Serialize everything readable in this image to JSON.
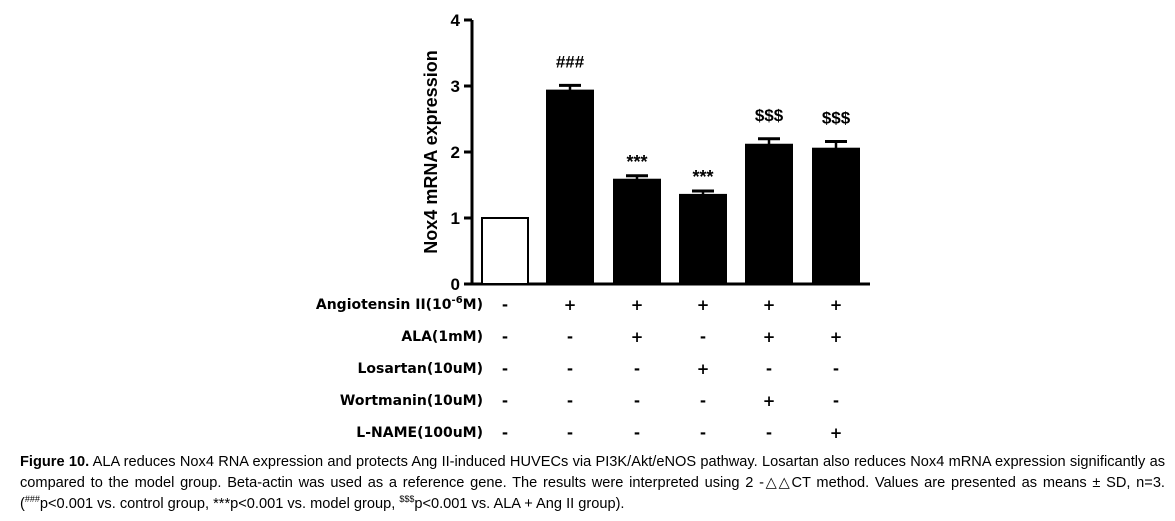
{
  "chart_data": {
    "type": "bar",
    "ylabel": "Nox4 mRNA expression",
    "ylim": [
      0,
      4
    ],
    "yticks": [
      "0",
      "1",
      "2",
      "3",
      "4"
    ],
    "bars": [
      {
        "value": 1.0,
        "error": 0.0,
        "fill": "#ffffff",
        "significance": ""
      },
      {
        "value": 2.93,
        "error": 0.08,
        "fill": "#000000",
        "significance": "###"
      },
      {
        "value": 1.58,
        "error": 0.06,
        "fill": "#000000",
        "significance": "***"
      },
      {
        "value": 1.35,
        "error": 0.06,
        "fill": "#000000",
        "significance": "***"
      },
      {
        "value": 2.11,
        "error": 0.09,
        "fill": "#000000",
        "significance": "$$$"
      },
      {
        "value": 2.05,
        "error": 0.11,
        "fill": "#000000",
        "significance": "$$$"
      }
    ],
    "treatments": [
      {
        "label": "Angiotensin II(10",
        "label_sup": "-6",
        "label_end": "M)",
        "marks": [
          "-",
          "+",
          "+",
          "+",
          "+",
          "+"
        ]
      },
      {
        "label": "ALA(1mM)",
        "label_sup": "",
        "label_end": "",
        "marks": [
          "-",
          "-",
          "+",
          "-",
          "+",
          "+"
        ]
      },
      {
        "label": "Losartan(10uM)",
        "label_sup": "",
        "label_end": "",
        "marks": [
          "-",
          "-",
          "-",
          "+",
          "-",
          "-"
        ]
      },
      {
        "label": "Wortmanin(10uM)",
        "label_sup": "",
        "label_end": "",
        "marks": [
          "-",
          "-",
          "-",
          "-",
          "+",
          "-"
        ]
      },
      {
        "label": "L-NAME(100uM)",
        "label_sup": "",
        "label_end": "",
        "marks": [
          "-",
          "-",
          "-",
          "-",
          "-",
          "+"
        ]
      }
    ]
  },
  "caption": {
    "figure_label": "Figure 10.",
    "text_1": " ALA reduces Nox4 RNA expression and protects Ang II-induced HUVECs via PI3K/Akt/eNOS pathway. Losartan also reduces Nox4 mRNA expression significantly as compared to the model group. Beta-actin was used as a reference gene. The results were interpreted using 2 -△△CT method. Values are presented as means ± SD, n=3. (",
    "sup_1": "###",
    "text_2": "p<0.001 vs. control group, ***p<0.001 vs. model group, ",
    "sup_2": "$$$",
    "text_3": "p<0.001 vs. ALA + Ang II group)."
  }
}
